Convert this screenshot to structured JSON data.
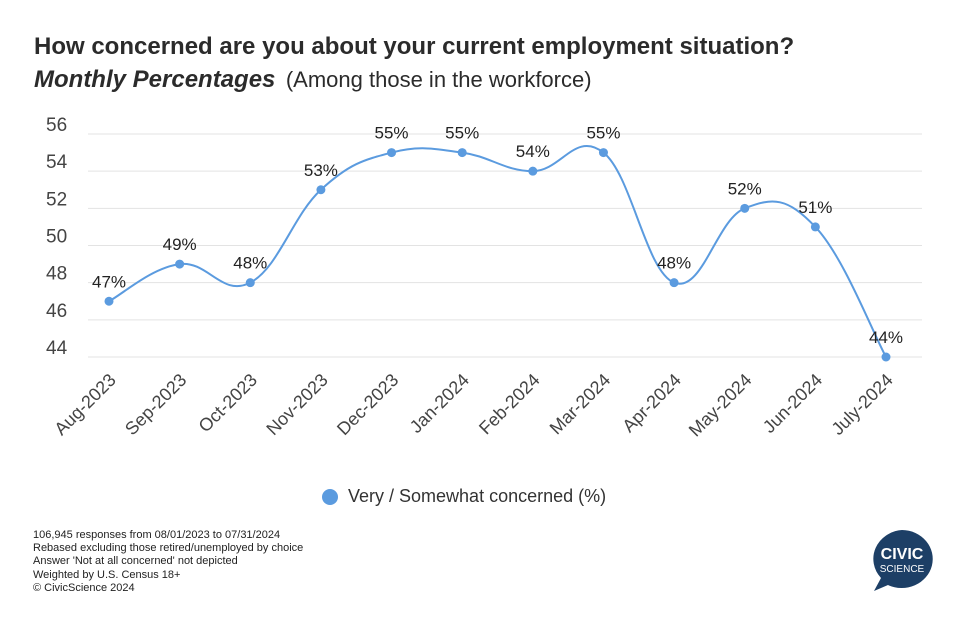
{
  "title": "How concerned are you about your current employment situation?",
  "subtitle": {
    "emphasis": "Monthly Percentages",
    "note": "(Among those in the workforce)"
  },
  "chart_data": {
    "type": "line",
    "categories": [
      "Aug-2023",
      "Sep-2023",
      "Oct-2023",
      "Nov-2023",
      "Dec-2023",
      "Jan-2024",
      "Feb-2024",
      "Mar-2024",
      "Apr-2024",
      "May-2024",
      "Jun-2024",
      "July-2024"
    ],
    "series": [
      {
        "name": "Very / Somewhat concerned (%)",
        "values": [
          47,
          49,
          48,
          53,
          55,
          55,
          54,
          55,
          48,
          52,
          51,
          44
        ],
        "labels": [
          "47%",
          "49%",
          "48%",
          "53%",
          "55%",
          "55%",
          "54%",
          "55%",
          "48%",
          "52%",
          "51%",
          "44%"
        ],
        "color": "#5b9bdf"
      }
    ],
    "ylim": [
      44,
      56
    ],
    "yticks": [
      44,
      46,
      48,
      50,
      52,
      54,
      56
    ],
    "grid": true,
    "smooth": true,
    "legend_position": "bottom"
  },
  "legend": {
    "label": "Very / Somewhat concerned (%)"
  },
  "notes": [
    "106,945 responses from 08/01/2023 to 07/31/2024",
    "Rebased excluding those retired/unemployed by choice",
    "Answer 'Not at all concerned' not depicted",
    "Weighted by U.S. Census 18+",
    "© CivicScience 2024"
  ],
  "logo": {
    "line1": "CIVIC",
    "line2": "SCIENCE",
    "color": "#1d3f66"
  },
  "colors": {
    "series": "#5b9bdf",
    "grid": "#e3e3e3",
    "title": "#2b2b2b"
  }
}
